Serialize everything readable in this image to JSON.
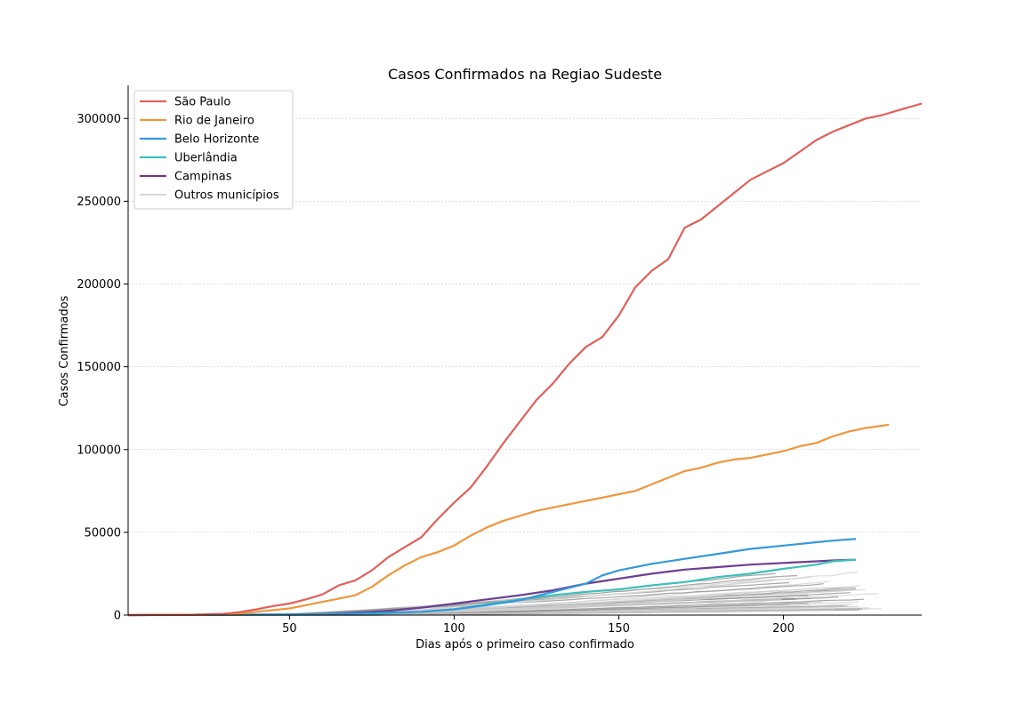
{
  "chart_data": {
    "type": "line",
    "title": "Casos Confirmados na Regiao Sudeste",
    "xlabel": "Dias após o primeiro caso confirmado",
    "ylabel": "Casos Confirmados",
    "xlim": [
      1,
      242
    ],
    "ylim": [
      0,
      320000
    ],
    "xticks": [
      50,
      100,
      150,
      200
    ],
    "yticks": [
      0,
      50000,
      100000,
      150000,
      200000,
      250000,
      300000
    ],
    "grid": "horizontal-dotted",
    "legend_position": "top-left",
    "series": [
      {
        "name": "São Paulo",
        "color": "#e0605a",
        "x": [
          1,
          20,
          30,
          35,
          40,
          45,
          50,
          55,
          60,
          65,
          70,
          75,
          80,
          85,
          90,
          95,
          100,
          105,
          110,
          115,
          120,
          125,
          130,
          135,
          140,
          145,
          150,
          155,
          160,
          165,
          170,
          175,
          180,
          185,
          190,
          195,
          200,
          205,
          210,
          215,
          220,
          225,
          230,
          235,
          242
        ],
        "y": [
          0,
          200,
          800,
          1800,
          3500,
          5500,
          7000,
          9500,
          12500,
          18000,
          21000,
          27000,
          35000,
          41000,
          47000,
          58000,
          68000,
          77000,
          90000,
          104000,
          117000,
          130000,
          140000,
          152000,
          162000,
          168000,
          181000,
          198000,
          208000,
          215000,
          234000,
          239000,
          247000,
          255000,
          263000,
          268000,
          273000,
          280000,
          287000,
          292000,
          296000,
          300000,
          302000,
          305000,
          309000
        ]
      },
      {
        "name": "Rio de Janeiro",
        "color": "#f0963c",
        "x": [
          1,
          25,
          35,
          40,
          45,
          50,
          55,
          60,
          65,
          70,
          75,
          80,
          85,
          90,
          95,
          100,
          105,
          110,
          115,
          120,
          125,
          130,
          135,
          140,
          145,
          150,
          155,
          160,
          165,
          170,
          175,
          180,
          185,
          190,
          195,
          200,
          205,
          210,
          215,
          220,
          225,
          232
        ],
        "y": [
          0,
          200,
          1000,
          2000,
          3000,
          4000,
          6000,
          8000,
          10000,
          12000,
          17000,
          24000,
          30000,
          35000,
          38000,
          42000,
          48000,
          53000,
          57000,
          60000,
          63000,
          65000,
          67000,
          69000,
          71000,
          73000,
          75000,
          79000,
          83000,
          87000,
          89000,
          92000,
          94000,
          95000,
          97000,
          99000,
          102000,
          104000,
          108000,
          111000,
          113000,
          115000
        ]
      },
      {
        "name": "Belo Horizonte",
        "color": "#3498db",
        "x": [
          1,
          60,
          90,
          100,
          110,
          120,
          130,
          140,
          145,
          150,
          160,
          170,
          180,
          190,
          200,
          210,
          215,
          222
        ],
        "y": [
          0,
          500,
          2000,
          3500,
          6000,
          9000,
          14000,
          19000,
          24000,
          27000,
          31000,
          34000,
          37000,
          40000,
          42000,
          44000,
          45000,
          46000
        ]
      },
      {
        "name": "Uberlândia",
        "color": "#3ec0b8",
        "x": [
          1,
          70,
          90,
          100,
          110,
          120,
          130,
          140,
          150,
          160,
          170,
          180,
          190,
          200,
          210,
          215,
          222
        ],
        "y": [
          0,
          300,
          2000,
          3500,
          6500,
          9500,
          12000,
          14000,
          15500,
          18000,
          20000,
          23000,
          25000,
          28000,
          30500,
          32500,
          33500
        ]
      },
      {
        "name": "Campinas",
        "color": "#6b3f92",
        "x": [
          1,
          60,
          80,
          90,
          100,
          110,
          120,
          130,
          140,
          150,
          160,
          170,
          180,
          190,
          200,
          210,
          215,
          222
        ],
        "y": [
          0,
          500,
          2500,
          4500,
          7000,
          9500,
          12000,
          15000,
          19000,
          22000,
          25000,
          27500,
          29000,
          30500,
          31500,
          32500,
          33000,
          33500
        ]
      },
      {
        "name": "Outros municípios",
        "color": "#cccccc",
        "x": [],
        "y": []
      }
    ]
  }
}
